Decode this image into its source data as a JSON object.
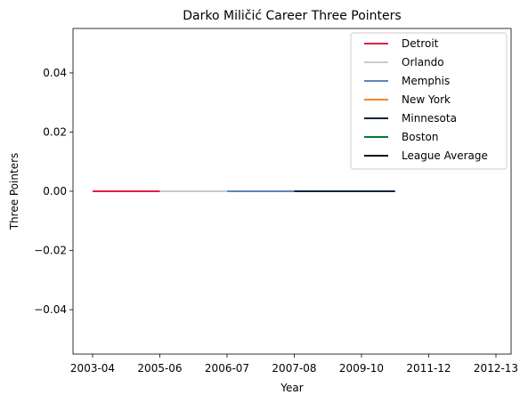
{
  "chart_data": {
    "type": "line",
    "title": "Darko Miličić Career Three Pointers",
    "xlabel": "Year",
    "ylabel": "Three Pointers",
    "x_categories": [
      "2003-04",
      "2005-06",
      "2006-07",
      "2007-08",
      "2009-10",
      "2011-12",
      "2012-13"
    ],
    "y_ticks": [
      -0.04,
      -0.02,
      0.0,
      0.02,
      0.04
    ],
    "y_tick_labels": [
      "−0.04",
      "−0.02",
      "0.00",
      "0.02",
      "0.04"
    ],
    "ylim": [
      -0.055,
      0.055
    ],
    "grid": false,
    "legend_position": "top-right",
    "series": [
      {
        "name": "Detroit",
        "color": "#e31b4c",
        "x_start": 0,
        "x_end": 1,
        "value": 0
      },
      {
        "name": "Orlando",
        "color": "#c4ced4",
        "x_start": 1,
        "x_end": 2,
        "value": 0
      },
      {
        "name": "Memphis",
        "color": "#5d86b8",
        "x_start": 2,
        "x_end": 3,
        "value": 0
      },
      {
        "name": "New York",
        "color": "#f58426",
        "x_start": null,
        "x_end": null,
        "value": 0
      },
      {
        "name": "Minnesota",
        "color": "#0c2340",
        "x_start": 3,
        "x_end": 4.5,
        "value": 0
      },
      {
        "name": "Boston",
        "color": "#007a33",
        "x_start": null,
        "x_end": null,
        "value": 0
      },
      {
        "name": "League Average",
        "color": "#000000",
        "x_start": null,
        "x_end": null,
        "value": 0
      }
    ]
  }
}
